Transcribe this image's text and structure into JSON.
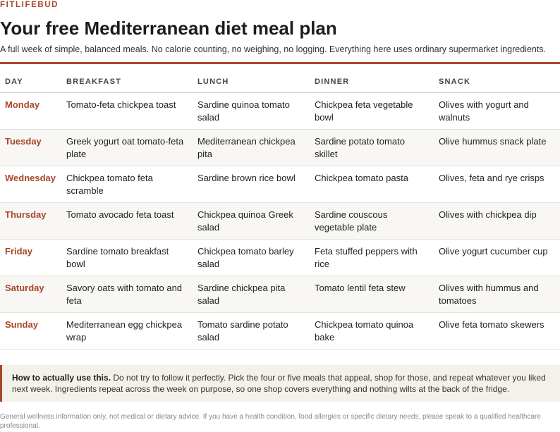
{
  "brand": "FITLIFEBUD",
  "title": "Your free Mediterranean diet meal plan",
  "subtitle": "A full week of simple, balanced meals. No calorie counting, no weighing, no logging. Everything here uses ordinary supermarket ingredients.",
  "table": {
    "headers": [
      "DAY",
      "BREAKFAST",
      "LUNCH",
      "DINNER",
      "SNACK"
    ],
    "rows": [
      {
        "day": "Monday",
        "breakfast": "Tomato-feta chickpea toast",
        "lunch": "Sardine quinoa tomato salad",
        "dinner": "Chickpea feta vegetable bowl",
        "snack": "Olives with yogurt and walnuts"
      },
      {
        "day": "Tuesday",
        "breakfast": "Greek yogurt oat tomato-feta plate",
        "lunch": "Mediterranean chickpea pita",
        "dinner": "Sardine potato tomato skillet",
        "snack": "Olive hummus snack plate"
      },
      {
        "day": "Wednesday",
        "breakfast": "Chickpea tomato feta scramble",
        "lunch": "Sardine brown rice bowl",
        "dinner": "Chickpea tomato pasta",
        "snack": "Olives, feta and rye crisps"
      },
      {
        "day": "Thursday",
        "breakfast": "Tomato avocado feta toast",
        "lunch": "Chickpea quinoa Greek salad",
        "dinner": "Sardine couscous vegetable plate",
        "snack": "Olives with chickpea dip"
      },
      {
        "day": "Friday",
        "breakfast": "Sardine tomato breakfast bowl",
        "lunch": "Chickpea tomato barley salad",
        "dinner": "Feta stuffed peppers with rice",
        "snack": "Olive yogurt cucumber cup"
      },
      {
        "day": "Saturday",
        "breakfast": "Savory oats with tomato and feta",
        "lunch": "Sardine chickpea pita salad",
        "dinner": "Tomato lentil feta stew",
        "snack": "Olives with hummus and tomatoes"
      },
      {
        "day": "Sunday",
        "breakfast": "Mediterranean egg chickpea wrap",
        "lunch": "Tomato sardine potato salad",
        "dinner": "Chickpea tomato quinoa bake",
        "snack": "Olive feta tomato skewers"
      }
    ]
  },
  "note": {
    "lead": "How to actually use this.",
    "text": "Do not try to follow it perfectly. Pick the four or five meals that appeal, shop for those, and repeat whatever you liked next week. Ingredients repeat across the week on purpose, so one shop covers everything and nothing wilts at the back of the fridge."
  },
  "disclaimer": "General wellness information only, not medical or dietary advice. If you have a health condition, food allergies or specific dietary needs, please speak to a qualified healthcare professional.",
  "colors": {
    "accent": "#a8462b",
    "row_alt": "#f8f7f3",
    "note_bg": "#f4f1ea"
  }
}
